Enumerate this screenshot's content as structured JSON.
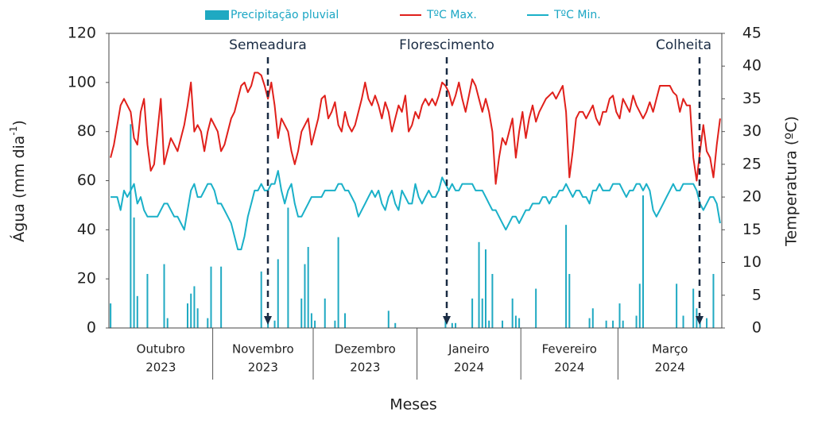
{
  "chart_data": {
    "type": "bar-line",
    "x_label": "Meses",
    "y_label": {
      "text": "Água (mm dia",
      "sup": "-1",
      "close": ")"
    },
    "y2_label": "Temperatura (ºC)",
    "ylim": [
      0,
      120
    ],
    "yticks": [
      0,
      20,
      40,
      60,
      80,
      100,
      120
    ],
    "y2lim": [
      0,
      45
    ],
    "y2ticks": [
      0,
      5,
      10,
      15,
      20,
      25,
      30,
      35,
      40,
      45
    ],
    "months": [
      {
        "name": "Outubro",
        "year": "2023",
        "days": 31
      },
      {
        "name": "Novembro",
        "year": "2023",
        "days": 30
      },
      {
        "name": "Dezembro",
        "year": "2023",
        "days": 31
      },
      {
        "name": "Janeiro",
        "year": "2024",
        "days": 31
      },
      {
        "name": "Fevereiro",
        "year": "2024",
        "days": 29
      },
      {
        "name": "Março",
        "year": "2024",
        "days": 31
      }
    ],
    "annotations": [
      "Semeadura",
      "Florescimento",
      "Colheita"
    ],
    "series": [
      {
        "name": "Precipitação pluvial",
        "kind": "bar",
        "color": "#1fa9c2",
        "values": [
          10,
          0,
          0,
          0,
          0,
          0,
          83,
          45,
          13,
          0,
          0,
          22,
          0,
          0,
          0,
          0,
          26,
          4,
          0,
          0,
          0,
          0,
          0,
          10,
          14,
          17,
          8,
          0,
          0,
          4,
          25,
          0,
          0,
          25,
          0,
          0,
          0,
          0,
          0,
          0,
          0,
          0,
          0,
          0,
          0,
          23,
          0,
          4,
          0,
          3,
          28,
          0,
          0,
          49,
          0,
          0,
          0,
          12,
          26,
          33,
          6,
          3,
          0,
          0,
          12,
          0,
          0,
          3,
          37,
          0,
          6,
          0,
          0,
          0,
          0,
          0,
          0,
          0,
          0,
          0,
          0,
          0,
          0,
          7,
          0,
          2,
          0,
          0,
          0,
          0,
          0,
          0,
          0,
          0,
          0,
          0,
          0,
          0,
          0,
          0,
          3,
          0,
          2,
          2,
          0,
          0,
          0,
          0,
          12,
          0,
          35,
          12,
          32,
          3,
          22,
          0,
          0,
          3,
          0,
          0,
          12,
          5,
          4,
          0,
          0,
          0,
          0,
          16,
          0,
          0,
          0,
          0,
          0,
          0,
          0,
          0,
          42,
          22,
          0,
          0,
          0,
          0,
          0,
          4,
          8,
          0,
          0,
          0,
          3,
          0,
          3,
          0,
          10,
          3,
          0,
          0,
          0,
          5,
          18,
          54,
          0,
          0,
          0,
          0,
          0,
          0,
          0,
          0,
          0,
          18,
          0,
          5,
          0,
          0,
          16,
          8,
          3,
          0,
          4,
          0,
          22,
          0,
          0
        ]
      },
      {
        "name": "TºC Max.",
        "kind": "line",
        "axis": "y2",
        "color": "#e0201b",
        "values": [
          26,
          28,
          31,
          34,
          35,
          34,
          33,
          29,
          28,
          33,
          35,
          28,
          24,
          25,
          30,
          35,
          25,
          27,
          29,
          28,
          27,
          29,
          31,
          34,
          37.5,
          30,
          31,
          30,
          27,
          30,
          32,
          31,
          30,
          27,
          28,
          30,
          32,
          33,
          35,
          37,
          37.5,
          36,
          37,
          39,
          39,
          38.6,
          37,
          35,
          37.5,
          34,
          29,
          32,
          31,
          30,
          27,
          25,
          27,
          30,
          31,
          32,
          28,
          30,
          32,
          35,
          35.5,
          32,
          33,
          34.5,
          31,
          30,
          33,
          31,
          30,
          31,
          33,
          35,
          37.5,
          35,
          34,
          35.5,
          34,
          32,
          34.5,
          33,
          30,
          32,
          34,
          33,
          35.5,
          30,
          31,
          33,
          32,
          34,
          35,
          34,
          35,
          34,
          35.5,
          37.5,
          37,
          36,
          34,
          35.5,
          37.5,
          35,
          33,
          35.5,
          38,
          37,
          35,
          33,
          35,
          33,
          30,
          22,
          26,
          29,
          28,
          30,
          32,
          26,
          30,
          33,
          29,
          32,
          34,
          31.5,
          33,
          34,
          35,
          35.5,
          36,
          35,
          36,
          37,
          33,
          23,
          27,
          32,
          33,
          33,
          32,
          33,
          34,
          32,
          31,
          33,
          33,
          35,
          35.5,
          33,
          32,
          35,
          34,
          33,
          35.5,
          34,
          33,
          32,
          33,
          34.5,
          33,
          35,
          37,
          37,
          37,
          37,
          36,
          35.5,
          33,
          35,
          34,
          34,
          26,
          22.5,
          27,
          31,
          27,
          26,
          23,
          28,
          32
        ]
      },
      {
        "name": "TºC  Min.",
        "kind": "line",
        "axis": "y2",
        "color": "#1ab0c8",
        "values": [
          20,
          20,
          20,
          18,
          21,
          20,
          21,
          22,
          19,
          20,
          18,
          17,
          17,
          17,
          17,
          18,
          19,
          19,
          18,
          17,
          17,
          16,
          15,
          18,
          21,
          22,
          20,
          20,
          21,
          22,
          22,
          21,
          19,
          19,
          18,
          17,
          16,
          14,
          12,
          12,
          14,
          17,
          19,
          21,
          21,
          22,
          21,
          21,
          22,
          22,
          24,
          21,
          19,
          21,
          22,
          19,
          17,
          17,
          18,
          19,
          20,
          20,
          20,
          20,
          21,
          21,
          21,
          21,
          22,
          22,
          21,
          21,
          20,
          19,
          17,
          18,
          19,
          20,
          21,
          20,
          21,
          19,
          18,
          20,
          21,
          19,
          18,
          21,
          20,
          19,
          19,
          22,
          20,
          19,
          20,
          21,
          20,
          20,
          21,
          23,
          22,
          21,
          22,
          21,
          21,
          22,
          22,
          22,
          22,
          21,
          21,
          21,
          20,
          19,
          18,
          18,
          17,
          16,
          15,
          16,
          17,
          17,
          16,
          17,
          18,
          18,
          19,
          19,
          19,
          20,
          20,
          19,
          20,
          20,
          21,
          21,
          22,
          21,
          20,
          21,
          21,
          20,
          20,
          19,
          21,
          21,
          22,
          21,
          21,
          21,
          22,
          22,
          22,
          21,
          20,
          21,
          21,
          22,
          22,
          21,
          22,
          21,
          18,
          17,
          18,
          19,
          20,
          21,
          22,
          21,
          21,
          22,
          22,
          22,
          22,
          21,
          19,
          18,
          19,
          20,
          20,
          19,
          16
        ]
      }
    ]
  }
}
